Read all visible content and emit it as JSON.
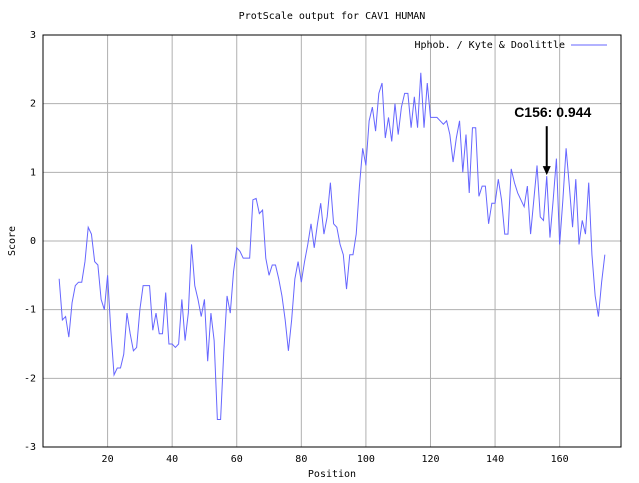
{
  "chart_data": {
    "type": "line",
    "title": "ProtScale output for CAV1 HUMAN",
    "xlabel": "Position",
    "ylabel": "Score",
    "legend_position": "upper right",
    "grid": true,
    "xlim": [
      0,
      179
    ],
    "ylim": [
      -3,
      3
    ],
    "xticks": [
      20,
      40,
      60,
      80,
      100,
      120,
      140,
      160
    ],
    "yticks": [
      -3,
      -2,
      -1,
      0,
      1,
      2,
      3
    ],
    "annotation": {
      "text": "C156: 0.944",
      "x": 156
    },
    "x": [
      5,
      6,
      7,
      8,
      9,
      10,
      11,
      12,
      13,
      14,
      15,
      16,
      17,
      18,
      19,
      20,
      21,
      22,
      23,
      24,
      25,
      26,
      27,
      28,
      29,
      30,
      31,
      32,
      33,
      34,
      35,
      36,
      37,
      38,
      39,
      40,
      41,
      42,
      43,
      44,
      45,
      46,
      47,
      48,
      49,
      50,
      51,
      52,
      53,
      54,
      55,
      56,
      57,
      58,
      59,
      60,
      61,
      62,
      63,
      64,
      65,
      66,
      67,
      68,
      69,
      70,
      71,
      72,
      73,
      74,
      75,
      76,
      77,
      78,
      79,
      80,
      81,
      82,
      83,
      84,
      85,
      86,
      87,
      88,
      89,
      90,
      91,
      92,
      93,
      94,
      95,
      96,
      97,
      98,
      99,
      100,
      101,
      102,
      103,
      104,
      105,
      106,
      107,
      108,
      109,
      110,
      111,
      112,
      113,
      114,
      115,
      116,
      117,
      118,
      119,
      120,
      121,
      122,
      123,
      124,
      125,
      126,
      127,
      128,
      129,
      130,
      131,
      132,
      133,
      134,
      135,
      136,
      137,
      138,
      139,
      140,
      141,
      142,
      143,
      144,
      145,
      146,
      147,
      148,
      149,
      150,
      151,
      152,
      153,
      154,
      155,
      156,
      157,
      158,
      159,
      160,
      161,
      162,
      163,
      164,
      165,
      166,
      167,
      168,
      169,
      170,
      171,
      172,
      173,
      174
    ],
    "series": [
      {
        "name": "Hphob. / Kyte & Doolittle",
        "color": "#6666ff",
        "values": [
          -0.55,
          -1.15,
          -1.1,
          -1.4,
          -0.9,
          -0.65,
          -0.6,
          -0.6,
          -0.3,
          0.2,
          0.1,
          -0.3,
          -0.35,
          -0.85,
          -1.0,
          -0.5,
          -1.3,
          -1.95,
          -1.85,
          -1.85,
          -1.65,
          -1.05,
          -1.35,
          -1.6,
          -1.55,
          -1.0,
          -0.65,
          -0.65,
          -0.65,
          -1.3,
          -1.05,
          -1.35,
          -1.35,
          -0.75,
          -1.5,
          -1.5,
          -1.55,
          -1.5,
          -0.85,
          -1.45,
          -1.05,
          -0.05,
          -0.65,
          -0.85,
          -1.1,
          -0.85,
          -1.75,
          -1.05,
          -1.45,
          -2.6,
          -2.6,
          -1.6,
          -0.8,
          -1.05,
          -0.45,
          -0.1,
          -0.15,
          -0.25,
          -0.25,
          -0.25,
          0.6,
          0.62,
          0.4,
          0.45,
          -0.25,
          -0.5,
          -0.35,
          -0.35,
          -0.55,
          -0.8,
          -1.15,
          -1.6,
          -1.15,
          -0.55,
          -0.3,
          -0.6,
          -0.3,
          -0.05,
          0.25,
          -0.1,
          0.25,
          0.55,
          0.1,
          0.35,
          0.85,
          0.25,
          0.2,
          -0.05,
          -0.2,
          -0.7,
          -0.2,
          -0.2,
          0.1,
          0.8,
          1.35,
          1.1,
          1.75,
          1.95,
          1.6,
          2.15,
          2.3,
          1.5,
          1.8,
          1.45,
          2.0,
          1.55,
          1.95,
          2.15,
          2.15,
          1.65,
          2.1,
          1.65,
          2.45,
          1.65,
          2.3,
          1.8,
          1.8,
          1.8,
          1.75,
          1.7,
          1.75,
          1.55,
          1.15,
          1.5,
          1.75,
          1.0,
          1.55,
          0.7,
          1.65,
          1.65,
          0.65,
          0.8,
          0.8,
          0.25,
          0.55,
          0.55,
          0.9,
          0.6,
          0.1,
          0.1,
          1.05,
          0.85,
          0.7,
          0.6,
          0.5,
          0.8,
          0.1,
          0.6,
          1.1,
          0.35,
          0.3,
          0.944,
          0.05,
          0.6,
          1.2,
          -0.05,
          0.6,
          1.35,
          0.8,
          0.2,
          0.9,
          -0.05,
          0.3,
          0.1,
          0.85,
          -0.2,
          -0.8,
          -1.1,
          -0.6,
          -0.2
        ]
      }
    ]
  }
}
